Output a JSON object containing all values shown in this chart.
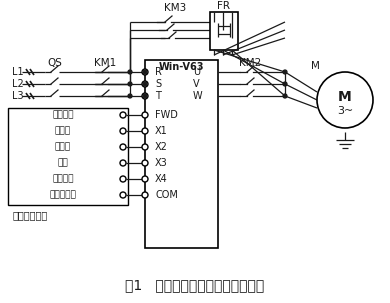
{
  "title": "图1   球磨机变频调速改造主电路图",
  "title_fontsize": 10,
  "bg_color": "#ffffff",
  "line_color": "#1a1a1a",
  "font_color": "#1a1a1a",
  "L_labels": [
    "L1",
    "L2",
    "L3"
  ],
  "QS_label": "QS",
  "KM1_label": "KM1",
  "KM2_label": "KM2",
  "KM3_label": "KM3",
  "FR_label": "FR",
  "VFD_label": "Win-V63",
  "M_label": "M",
  "M_sub": "3~",
  "VFD_inputs_main": [
    "R",
    "S",
    "T"
  ],
  "VFD_inputs_ctrl": [
    "FWD",
    "X1",
    "X2",
    "X3",
    "X4",
    "COM"
  ],
  "VFD_outputs": [
    "U",
    "V",
    "W"
  ],
  "control_labels": [
    "正转命令",
    "多段频",
    "率选择",
    "急停",
    "故障复位",
    "数字信号地"
  ],
  "control_box_label": "球磨机控制台"
}
